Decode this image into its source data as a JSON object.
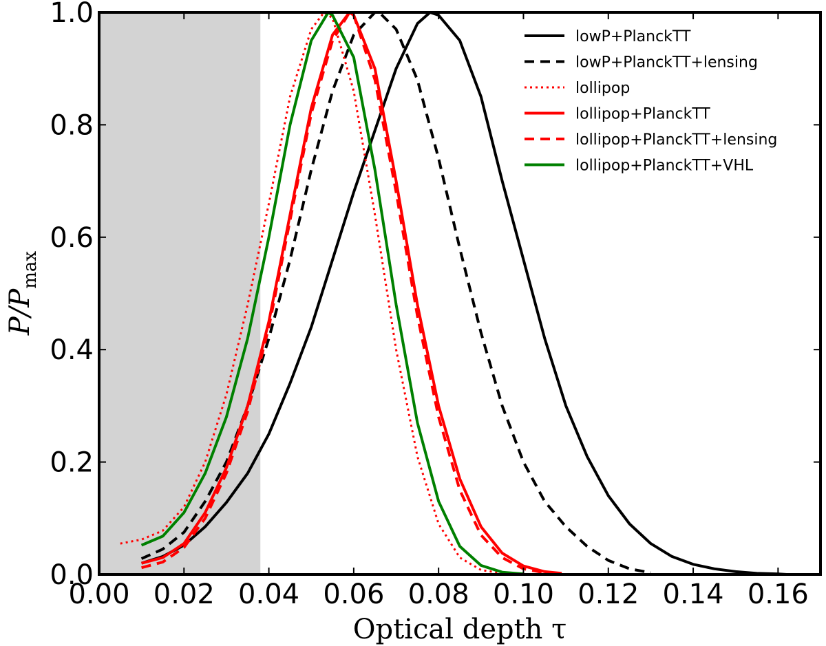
{
  "chart_data": {
    "type": "line",
    "title": "",
    "xlabel": "Optical depth τ",
    "ylabel": "P/P_max",
    "xlim": [
      0.0,
      0.17
    ],
    "ylim": [
      0.0,
      1.0
    ],
    "xticks": [
      "0.00",
      "0.02",
      "0.04",
      "0.06",
      "0.08",
      "0.10",
      "0.12",
      "0.14",
      "0.16"
    ],
    "yticks": [
      "0.0",
      "0.2",
      "0.4",
      "0.6",
      "0.8",
      "1.0"
    ],
    "shaded_region": {
      "from": 0.0,
      "to": 0.038,
      "color": "#d3d3d3"
    },
    "legend_position": "top-right",
    "series": [
      {
        "name": "lowP+PlanckTT",
        "color": "#000000",
        "style": "solid",
        "x": [
          0.01,
          0.015,
          0.02,
          0.025,
          0.03,
          0.035,
          0.04,
          0.045,
          0.05,
          0.055,
          0.06,
          0.065,
          0.07,
          0.075,
          0.078,
          0.08,
          0.085,
          0.09,
          0.095,
          0.1,
          0.105,
          0.11,
          0.115,
          0.12,
          0.125,
          0.13,
          0.135,
          0.14,
          0.145,
          0.15,
          0.155,
          0.16,
          0.162
        ],
        "y": [
          0.02,
          0.032,
          0.052,
          0.085,
          0.128,
          0.18,
          0.25,
          0.34,
          0.44,
          0.56,
          0.68,
          0.79,
          0.9,
          0.98,
          1.0,
          0.995,
          0.95,
          0.85,
          0.7,
          0.56,
          0.42,
          0.3,
          0.21,
          0.14,
          0.09,
          0.055,
          0.032,
          0.018,
          0.01,
          0.005,
          0.002,
          0.001,
          0.0
        ]
      },
      {
        "name": "lowP+PlanckTT+lensing",
        "color": "#000000",
        "style": "dashed",
        "x": [
          0.01,
          0.015,
          0.02,
          0.025,
          0.03,
          0.035,
          0.04,
          0.045,
          0.05,
          0.055,
          0.06,
          0.065,
          0.066,
          0.07,
          0.075,
          0.08,
          0.085,
          0.09,
          0.095,
          0.1,
          0.105,
          0.11,
          0.115,
          0.12,
          0.125,
          0.13
        ],
        "y": [
          0.028,
          0.045,
          0.075,
          0.13,
          0.2,
          0.3,
          0.42,
          0.56,
          0.72,
          0.86,
          0.96,
          1.0,
          1.0,
          0.97,
          0.88,
          0.74,
          0.58,
          0.43,
          0.3,
          0.2,
          0.13,
          0.085,
          0.05,
          0.025,
          0.01,
          0.003
        ]
      },
      {
        "name": "lollipop",
        "color": "#ff0000",
        "style": "dotted",
        "x": [
          0.005,
          0.01,
          0.015,
          0.02,
          0.025,
          0.03,
          0.035,
          0.04,
          0.045,
          0.05,
          0.053,
          0.055,
          0.06,
          0.065,
          0.07,
          0.075,
          0.08,
          0.085,
          0.09,
          0.095,
          0.1
        ],
        "y": [
          0.055,
          0.062,
          0.078,
          0.12,
          0.2,
          0.32,
          0.48,
          0.66,
          0.85,
          0.97,
          1.0,
          0.99,
          0.86,
          0.64,
          0.4,
          0.21,
          0.09,
          0.03,
          0.008,
          0.002,
          0.0
        ]
      },
      {
        "name": "lollipop+PlanckTT",
        "color": "#ff0000",
        "style": "solid",
        "x": [
          0.01,
          0.015,
          0.02,
          0.025,
          0.03,
          0.035,
          0.04,
          0.045,
          0.05,
          0.055,
          0.059,
          0.06,
          0.065,
          0.07,
          0.075,
          0.08,
          0.085,
          0.09,
          0.095,
          0.1,
          0.105,
          0.109
        ],
        "y": [
          0.02,
          0.03,
          0.055,
          0.11,
          0.19,
          0.3,
          0.45,
          0.64,
          0.83,
          0.96,
          1.0,
          0.995,
          0.9,
          0.7,
          0.48,
          0.3,
          0.17,
          0.085,
          0.038,
          0.015,
          0.005,
          0.002
        ]
      },
      {
        "name": "lollipop+PlanckTT+lensing",
        "color": "#ff0000",
        "style": "dashed",
        "x": [
          0.01,
          0.015,
          0.02,
          0.025,
          0.03,
          0.035,
          0.04,
          0.045,
          0.05,
          0.055,
          0.059,
          0.06,
          0.065,
          0.07,
          0.075,
          0.08,
          0.085,
          0.09,
          0.095,
          0.1,
          0.105
        ],
        "y": [
          0.012,
          0.022,
          0.048,
          0.1,
          0.18,
          0.29,
          0.44,
          0.63,
          0.82,
          0.95,
          1.0,
          0.995,
          0.88,
          0.68,
          0.46,
          0.28,
          0.15,
          0.07,
          0.03,
          0.01,
          0.003
        ]
      },
      {
        "name": "lollipop+PlanckTT+VHL",
        "color": "#008000",
        "style": "solid",
        "x": [
          0.01,
          0.015,
          0.02,
          0.025,
          0.03,
          0.035,
          0.04,
          0.045,
          0.05,
          0.054,
          0.055,
          0.06,
          0.065,
          0.07,
          0.075,
          0.08,
          0.085,
          0.09,
          0.095,
          0.1
        ],
        "y": [
          0.052,
          0.068,
          0.11,
          0.18,
          0.28,
          0.42,
          0.6,
          0.8,
          0.95,
          1.0,
          0.995,
          0.92,
          0.72,
          0.48,
          0.27,
          0.13,
          0.05,
          0.016,
          0.004,
          0.001
        ]
      }
    ]
  }
}
